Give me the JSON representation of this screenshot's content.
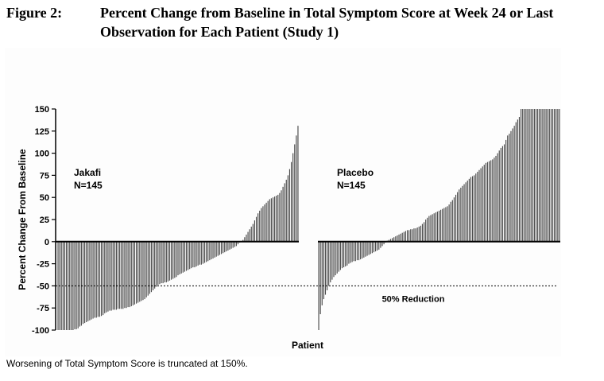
{
  "figure": {
    "label": "Figure 2:",
    "title": "Percent Change from Baseline in Total Symptom Score at Week 24 or Last Observation for Each Patient (Study 1)"
  },
  "footnote": "Worsening of Total Symptom Score is truncated at 150%.",
  "colors": {
    "bar": "#4a4a4a",
    "axis": "#000000",
    "text": "#000000"
  },
  "chart_data": {
    "type": "bar",
    "title": "",
    "xlabel": "Patient",
    "ylabel": "Percent Change From Baseline",
    "ylim": [
      -100,
      150
    ],
    "yticks": [
      150,
      125,
      100,
      75,
      50,
      25,
      0,
      -25,
      -50,
      -75,
      -100
    ],
    "reference_line": {
      "y": -50,
      "style": "dotted",
      "label": "50% Reduction"
    },
    "truncation": 150,
    "panels": [
      {
        "name": "Jakafi",
        "n_label": "N=145",
        "n": 145,
        "values_sorted": [
          -100,
          -100,
          -100,
          -100,
          -100,
          -100,
          -100,
          -100,
          -100,
          -100,
          -99,
          -99,
          -98,
          -96,
          -95,
          -93,
          -92,
          -91,
          -90,
          -89,
          -88,
          -87,
          -86,
          -86,
          -85,
          -85,
          -84,
          -83,
          -81,
          -80,
          -79,
          -78,
          -78,
          -77,
          -77,
          -77,
          -76,
          -76,
          -76,
          -76,
          -75,
          -75,
          -74,
          -74,
          -73,
          -72,
          -71,
          -70,
          -69,
          -68,
          -67,
          -66,
          -65,
          -63,
          -61,
          -59,
          -57,
          -55,
          -53,
          -51,
          -49,
          -48,
          -47,
          -47,
          -46,
          -46,
          -45,
          -44,
          -43,
          -42,
          -41,
          -40,
          -38,
          -37,
          -36,
          -35,
          -34,
          -33,
          -32,
          -31,
          -30,
          -29,
          -29,
          -28,
          -27,
          -26,
          -26,
          -25,
          -24,
          -23,
          -22,
          -21,
          -20,
          -19,
          -18,
          -17,
          -16,
          -15,
          -14,
          -13,
          -12,
          -11,
          -10,
          -9,
          -8,
          -7,
          -6,
          -5,
          -3,
          -1,
          0,
          2,
          5,
          8,
          11,
          14,
          17,
          20,
          24,
          28,
          32,
          35,
          38,
          40,
          42,
          44,
          46,
          48,
          49,
          50,
          51,
          52,
          53,
          55,
          58,
          62,
          66,
          70,
          75,
          82,
          90,
          100,
          110,
          120,
          131
        ]
      },
      {
        "name": "Placebo",
        "n_label": "N=145",
        "n": 145,
        "values_sorted": [
          -100,
          -82,
          -72,
          -65,
          -60,
          -55,
          -50,
          -46,
          -43,
          -40,
          -38,
          -36,
          -34,
          -32,
          -30,
          -29,
          -28,
          -27,
          -25,
          -24,
          -23,
          -22,
          -22,
          -21,
          -21,
          -20,
          -19,
          -18,
          -17,
          -16,
          -15,
          -14,
          -13,
          -12,
          -11,
          -10,
          -9,
          -7,
          -5,
          -3,
          -1,
          1,
          2,
          3,
          4,
          5,
          6,
          7,
          8,
          9,
          10,
          11,
          12,
          13,
          13,
          14,
          14,
          15,
          15,
          16,
          17,
          18,
          20,
          22,
          25,
          27,
          29,
          30,
          31,
          32,
          33,
          34,
          35,
          36,
          37,
          38,
          39,
          40,
          42,
          45,
          47,
          50,
          53,
          56,
          59,
          61,
          63,
          65,
          67,
          69,
          71,
          73,
          74,
          75,
          77,
          79,
          81,
          83,
          85,
          87,
          89,
          90,
          91,
          92,
          93,
          95,
          97,
          100,
          103,
          106,
          108,
          110,
          115,
          120,
          122,
          125,
          128,
          131,
          135,
          138,
          141,
          150,
          150,
          150,
          150,
          150,
          150,
          150,
          150,
          150,
          150,
          150,
          150,
          150,
          150,
          150,
          150,
          150,
          150,
          150,
          150,
          150,
          150,
          150,
          150
        ]
      }
    ]
  }
}
